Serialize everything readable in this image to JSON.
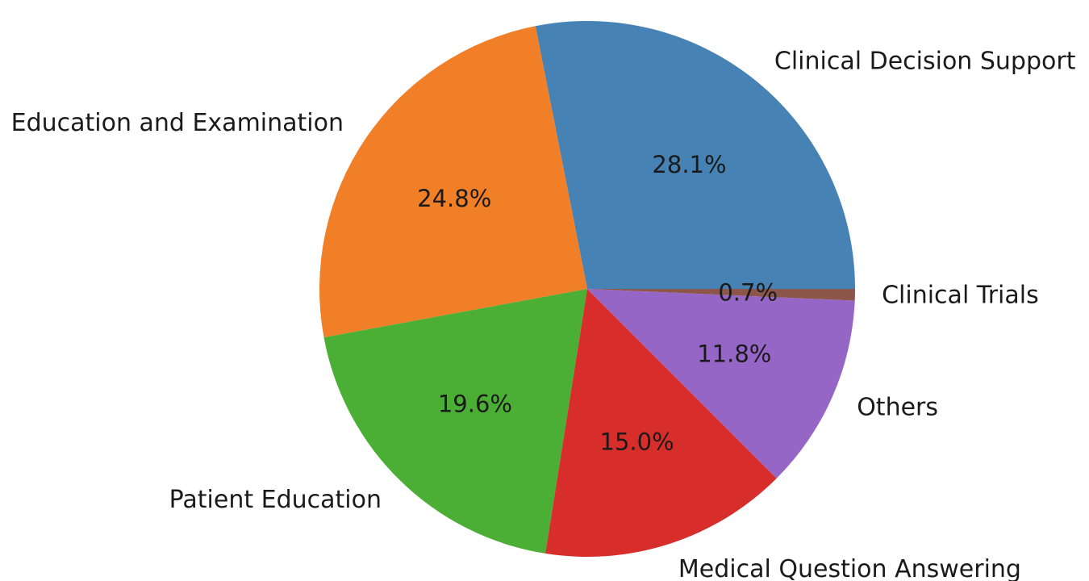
{
  "chart_data": {
    "type": "pie",
    "title": "",
    "legend": "none",
    "slices": [
      {
        "label": "Clinical Decision Support",
        "value": 28.1,
        "pct_label": "28.1%",
        "color": "#4682b4"
      },
      {
        "label": "Education and Examination",
        "value": 24.8,
        "pct_label": "24.8%",
        "color": "#f07f27"
      },
      {
        "label": "Patient Education",
        "value": 19.6,
        "pct_label": "19.6%",
        "color": "#4caf35"
      },
      {
        "label": "Medical Question Answering",
        "value": 15.0,
        "pct_label": "15.0%",
        "color": "#d82e2b"
      },
      {
        "label": "Others",
        "value": 11.8,
        "pct_label": "11.8%",
        "color": "#9566c6"
      },
      {
        "label": "Clinical Trials",
        "value": 0.7,
        "pct_label": "0.7%",
        "color": "#8c564b"
      }
    ],
    "start_angle_deg": 0,
    "direction": "counterclockwise",
    "shadow": false
  }
}
